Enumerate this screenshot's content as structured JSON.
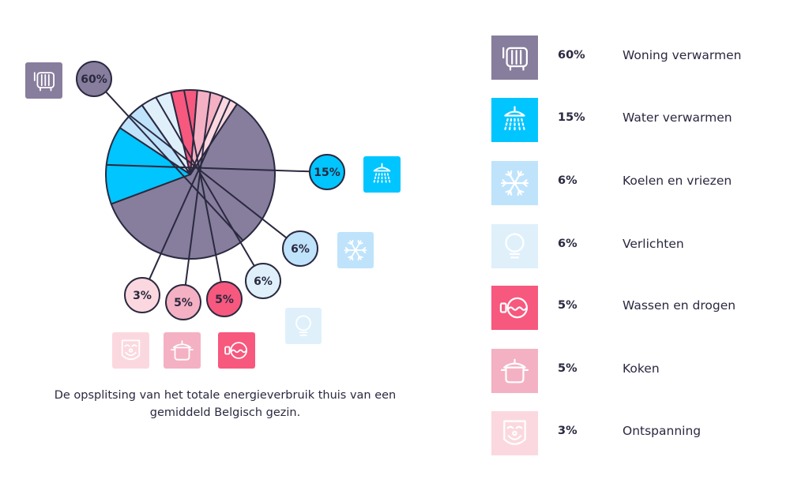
{
  "chart_data": {
    "type": "pie",
    "caption": "De opsplitsing van het totale energieverbruik thuis van een gemiddeld Belgisch gezin.",
    "slices": [
      {
        "name": "Woning verwarmen",
        "value": 60,
        "label": "60%",
        "color": "#877d9c",
        "icon": "radiator-icon"
      },
      {
        "name": "Water verwarmen",
        "value": 15,
        "label": "15%",
        "color": "#00c5ff",
        "icon": "shower-icon"
      },
      {
        "name": "Koelen en vriezen",
        "value": 6,
        "label": "6%",
        "color": "#bfe3fb",
        "icon": "snowflake-icon"
      },
      {
        "name": "Verlichten",
        "value": 6,
        "label": "6%",
        "color": "#dff0fb",
        "icon": "lightbulb-icon"
      },
      {
        "name": "Wassen en drogen",
        "value": 5,
        "label": "5%",
        "color": "#f7587e",
        "icon": "washing-machine-icon"
      },
      {
        "name": "Koken",
        "value": 5,
        "label": "5%",
        "color": "#f4b1c3",
        "icon": "cooking-pot-icon"
      },
      {
        "name": "Ontspanning",
        "value": 3,
        "label": "3%",
        "color": "#fbd8df",
        "icon": "entertainment-icon"
      }
    ]
  }
}
